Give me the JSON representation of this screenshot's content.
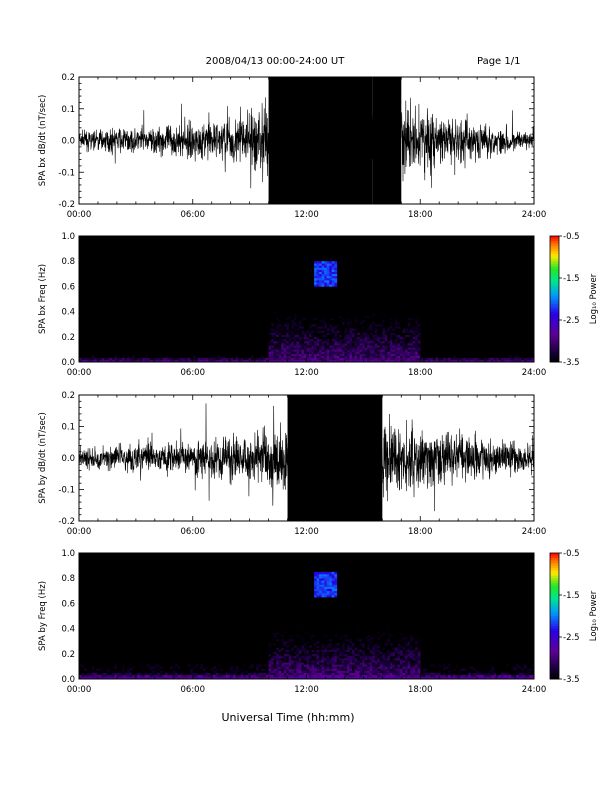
{
  "header": {
    "date_range": "2008/04/13  00:00-24:00 UT",
    "page": "Page 1/1"
  },
  "x_axis": {
    "title": "Universal Time (hh:mm)",
    "ticks": [
      "00:00",
      "06:00",
      "12:00",
      "18:00",
      "24:00"
    ]
  },
  "chart_data": [
    {
      "type": "line",
      "ylabel": "SPA bx dB/dt (nT/sec)",
      "xlim": [
        0,
        24
      ],
      "ylim": [
        -0.2,
        0.2
      ],
      "yticks": [
        "-0.2",
        "-0.1",
        "0.0",
        "0.1",
        "0.2"
      ],
      "activity_envelope": [
        {
          "x": 0,
          "amp": 0.045
        },
        {
          "x": 2,
          "amp": 0.06
        },
        {
          "x": 4,
          "amp": 0.07
        },
        {
          "x": 6,
          "amp": 0.09
        },
        {
          "x": 8,
          "amp": 0.11
        },
        {
          "x": 9.5,
          "amp": 0.17
        },
        {
          "x": 10,
          "amp": 0.21
        },
        {
          "x": 15.5,
          "amp": 0.21
        },
        {
          "x": 17,
          "amp": 0.2
        },
        {
          "x": 19,
          "amp": 0.14
        },
        {
          "x": 21,
          "amp": 0.1
        },
        {
          "x": 23,
          "amp": 0.05
        },
        {
          "x": 24,
          "amp": 0.04
        }
      ]
    },
    {
      "type": "heatmap",
      "ylabel": "SPA bx Freq (Hz)",
      "xlim": [
        0,
        24
      ],
      "ylim": [
        0,
        1.0
      ],
      "yticks": [
        "0.0",
        "0.2",
        "0.4",
        "0.6",
        "0.8",
        "1.0"
      ],
      "colorbar": {
        "label": "Log₁₀ Power",
        "range": [
          -3.5,
          -0.5
        ],
        "ticks": [
          "-0.5",
          "-1.5",
          "-2.5",
          "-3.5"
        ]
      },
      "features": [
        {
          "name": "low-frequency band",
          "x_range": [
            0,
            24
          ],
          "freq_range": [
            0,
            0.05
          ],
          "level": -2.8
        },
        {
          "name": "daytime broadband activity",
          "x_range": [
            10,
            18
          ],
          "freq_range": [
            0,
            0.5
          ],
          "level": -3.0
        },
        {
          "name": "Pc1 band emission",
          "x": 13,
          "freq_range": [
            0.6,
            0.8
          ],
          "level": -2.2
        }
      ]
    },
    {
      "type": "line",
      "ylabel": "SPA by dB/dt (nT/sec)",
      "xlim": [
        0,
        24
      ],
      "ylim": [
        -0.2,
        0.2
      ],
      "yticks": [
        "-0.2",
        "-0.1",
        "0.0",
        "0.1",
        "0.2"
      ],
      "activity_envelope": [
        {
          "x": 0,
          "amp": 0.05
        },
        {
          "x": 2,
          "amp": 0.06
        },
        {
          "x": 4,
          "amp": 0.09
        },
        {
          "x": 6,
          "amp": 0.08
        },
        {
          "x": 8,
          "amp": 0.1
        },
        {
          "x": 10,
          "amp": 0.15
        },
        {
          "x": 11,
          "amp": 0.21
        },
        {
          "x": 16,
          "amp": 0.21
        },
        {
          "x": 18,
          "amp": 0.17
        },
        {
          "x": 20,
          "amp": 0.13
        },
        {
          "x": 22,
          "amp": 0.09
        },
        {
          "x": 24,
          "amp": 0.07
        }
      ]
    },
    {
      "type": "heatmap",
      "ylabel": "SPA by Freq (Hz)",
      "xlim": [
        0,
        24
      ],
      "ylim": [
        0,
        1.0
      ],
      "yticks": [
        "0.0",
        "0.2",
        "0.4",
        "0.6",
        "0.8",
        "1.0"
      ],
      "colorbar": {
        "label": "Log₁₀ Power",
        "range": [
          -3.5,
          -0.5
        ],
        "ticks": [
          "-0.5",
          "-1.5",
          "-2.5",
          "-3.5"
        ]
      },
      "features": [
        {
          "name": "low-frequency band",
          "x_range": [
            0,
            24
          ],
          "freq_range": [
            0,
            0.05
          ],
          "level": -2.6
        },
        {
          "name": "daytime broadband activity",
          "x_range": [
            10,
            18
          ],
          "freq_range": [
            0,
            0.5
          ],
          "level": -3.0
        },
        {
          "name": "Pc1 band emission",
          "x": 13,
          "freq_range": [
            0.65,
            0.85
          ],
          "level": -2.2
        }
      ]
    }
  ]
}
